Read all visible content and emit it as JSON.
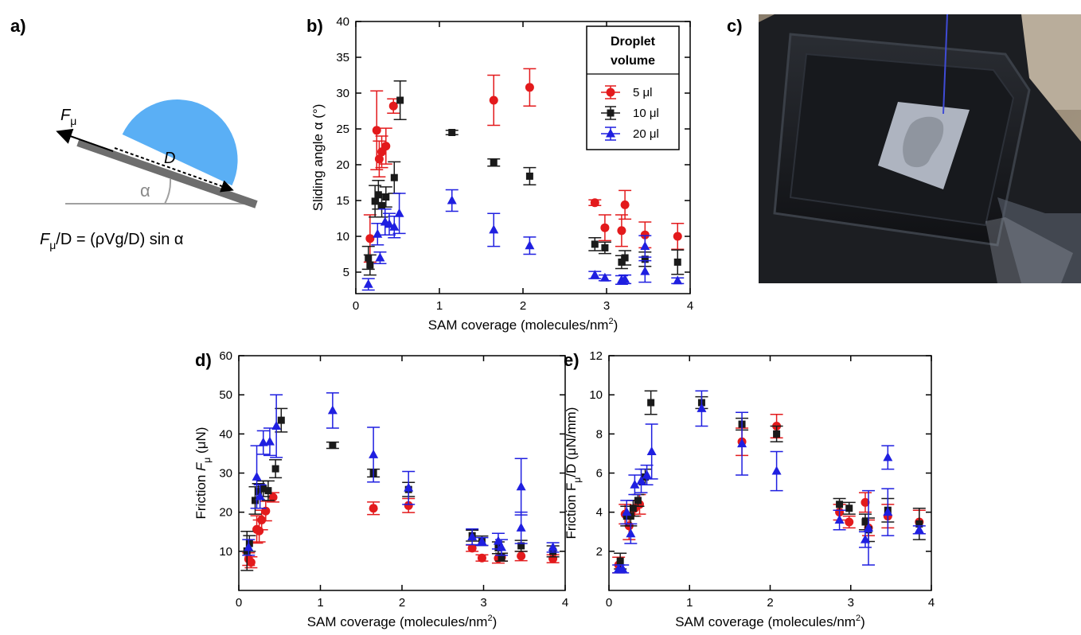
{
  "panel_labels": {
    "a": "a)",
    "b": "b)",
    "c": "c)",
    "d": "d)",
    "e": "e)"
  },
  "schematic": {
    "force_label": "F",
    "force_sub": "μ",
    "length_label": "D",
    "angle_label": "α",
    "equation_lhs": "F",
    "equation_lhs_sub": "μ",
    "equation_rhs": "/D = (ρVg/D) sin α",
    "colors": {
      "droplet": "#5aaff5",
      "substrate": "#6e6e6e",
      "baseline": "#a0a0a0"
    }
  },
  "photo": {
    "description_icon": "photo-droplet-on-tilted-substrate"
  },
  "legend": {
    "title_line1": "Droplet",
    "title_line2": "volume",
    "entries": [
      "5 μl",
      "10 μl",
      "20 μl"
    ]
  },
  "series_styles": [
    {
      "name": "5 μl",
      "color": "#e31a1c",
      "marker": "circle"
    },
    {
      "name": "10 μl",
      "color": "#1a1a1a",
      "marker": "square"
    },
    {
      "name": "20 μl",
      "color": "#1f1fe0",
      "marker": "triangle"
    }
  ],
  "chart_data": [
    {
      "id": "b",
      "type": "scatter",
      "xlabel": "SAM coverage (molecules/nm",
      "xlabel_sup": "2",
      "xlabel_end": ")",
      "ylabel": "Sliding angle α (°)",
      "xlim": [
        0,
        4
      ],
      "ylim": [
        2,
        40
      ],
      "xticks": [
        0,
        1,
        2,
        3,
        4
      ],
      "yticks": [
        5,
        10,
        15,
        20,
        25,
        30,
        35,
        40
      ],
      "series": [
        {
          "name": "5 μl",
          "points": [
            [
              0.17,
              9.7,
              3.3
            ],
            [
              0.25,
              24.8,
              5.5
            ],
            [
              0.28,
              20.8,
              2.5
            ],
            [
              0.31,
              21.8,
              2.2
            ],
            [
              0.36,
              22.6,
              2.5
            ],
            [
              0.45,
              28.2,
              1.0
            ],
            [
              1.65,
              29.0,
              3.5
            ],
            [
              2.08,
              30.8,
              2.6
            ],
            [
              2.86,
              14.7,
              0.4
            ],
            [
              2.98,
              11.2,
              1.8
            ],
            [
              3.18,
              10.8,
              2.2
            ],
            [
              3.22,
              14.4,
              2.0
            ],
            [
              3.46,
              10.2,
              1.8
            ],
            [
              3.85,
              10.0,
              1.8
            ]
          ]
        },
        {
          "name": "10 μl",
          "points": [
            [
              0.15,
              7.0,
              1.6
            ],
            [
              0.17,
              6.0,
              1.4
            ],
            [
              0.23,
              14.9,
              2.2
            ],
            [
              0.27,
              15.8,
              2.0
            ],
            [
              0.31,
              14.3,
              1.6
            ],
            [
              0.36,
              15.5,
              1.4
            ],
            [
              0.46,
              18.2,
              2.2
            ],
            [
              0.53,
              29.0,
              2.7
            ],
            [
              1.15,
              24.5,
              0.3
            ],
            [
              1.65,
              20.3,
              0.5
            ],
            [
              2.08,
              18.4,
              1.2
            ],
            [
              2.86,
              8.9,
              0.9
            ],
            [
              2.98,
              8.4,
              0.8
            ],
            [
              3.18,
              6.4,
              0.9
            ],
            [
              3.22,
              7.0,
              1.0
            ],
            [
              3.46,
              6.8,
              1.0
            ],
            [
              3.85,
              6.4,
              1.7
            ]
          ]
        },
        {
          "name": "20 μl",
          "points": [
            [
              0.15,
              3.3,
              0.8
            ],
            [
              0.26,
              10.3,
              1.5
            ],
            [
              0.29,
              7.0,
              0.8
            ],
            [
              0.35,
              12.0,
              1.8
            ],
            [
              0.4,
              11.7,
              1.5
            ],
            [
              0.46,
              11.3,
              1.5
            ],
            [
              0.52,
              13.2,
              2.8
            ],
            [
              1.15,
              15.0,
              1.5
            ],
            [
              1.65,
              10.9,
              2.3
            ],
            [
              2.08,
              8.7,
              1.2
            ],
            [
              2.86,
              4.6,
              0.5
            ],
            [
              2.98,
              4.2,
              0.4
            ],
            [
              3.18,
              3.9,
              0.6
            ],
            [
              3.22,
              4.0,
              0.6
            ],
            [
              3.46,
              5.1,
              1.5
            ],
            [
              3.46,
              8.6,
              1.5
            ],
            [
              3.85,
              3.8,
              0.4
            ]
          ]
        }
      ]
    },
    {
      "id": "d",
      "type": "scatter",
      "xlabel": "SAM coverage (molecules/nm",
      "xlabel_sup": "2",
      "xlabel_end": ")",
      "ylabel": "Friction F",
      "ylabel_sub": "μ",
      "ylabel_end": " (μN)",
      "xlim": [
        0,
        4
      ],
      "ylim": [
        0,
        60
      ],
      "xticks": [
        0,
        1,
        2,
        3,
        4
      ],
      "yticks": [
        10,
        20,
        30,
        40,
        50,
        60
      ],
      "series": [
        {
          "name": "5 μl",
          "points": [
            [
              0.12,
              8.0,
              1.6
            ],
            [
              0.15,
              7.2,
              1.4
            ],
            [
              0.22,
              15.6,
              3.5
            ],
            [
              0.25,
              15.2,
              2.8
            ],
            [
              0.28,
              18.0,
              2.5
            ],
            [
              0.33,
              20.3,
              2.5
            ],
            [
              0.42,
              23.8,
              1.2
            ],
            [
              1.65,
              21.0,
              1.6
            ],
            [
              2.08,
              21.7,
              1.8
            ],
            [
              2.86,
              10.8,
              0.8
            ],
            [
              2.98,
              8.3,
              0.8
            ],
            [
              3.18,
              8.2,
              1.2
            ],
            [
              3.22,
              8.5,
              1.0
            ],
            [
              3.46,
              8.8,
              1.2
            ],
            [
              3.85,
              8.1,
              1.0
            ]
          ]
        },
        {
          "name": "10 μl",
          "points": [
            [
              0.1,
              10.1,
              5.0
            ],
            [
              0.13,
              12.0,
              2.0
            ],
            [
              0.2,
              23.0,
              3.5
            ],
            [
              0.24,
              25.3,
              2.0
            ],
            [
              0.3,
              26.0,
              2.0
            ],
            [
              0.36,
              25.5,
              2.5
            ],
            [
              0.45,
              31.1,
              2.3
            ],
            [
              0.52,
              43.5,
              3.0
            ],
            [
              1.15,
              37.1,
              0.8
            ],
            [
              1.65,
              30.0,
              1.0
            ],
            [
              2.08,
              25.8,
              1.8
            ],
            [
              2.86,
              14.0,
              1.4
            ],
            [
              2.98,
              12.7,
              1.2
            ],
            [
              3.18,
              10.9,
              1.5
            ],
            [
              3.22,
              8.5,
              1.0
            ],
            [
              3.46,
              11.4,
              1.4
            ],
            [
              3.85,
              10.0,
              1.4
            ]
          ]
        },
        {
          "name": "20 μl",
          "points": [
            [
              0.12,
              11.0,
              2.0
            ],
            [
              0.22,
              29.0,
              8.0
            ],
            [
              0.26,
              24.0,
              3.0
            ],
            [
              0.3,
              37.8,
              3.0
            ],
            [
              0.38,
              38.0,
              3.5
            ],
            [
              0.46,
              42.0,
              8.0
            ],
            [
              1.15,
              46.0,
              4.5
            ],
            [
              1.65,
              34.7,
              7.0
            ],
            [
              2.08,
              26.2,
              4.2
            ],
            [
              2.86,
              13.7,
              2.0
            ],
            [
              2.98,
              12.5,
              1.0
            ],
            [
              3.18,
              12.6,
              2.0
            ],
            [
              3.22,
              11.0,
              2.0
            ],
            [
              3.46,
              26.5,
              7.2
            ],
            [
              3.46,
              16.0,
              4.0
            ],
            [
              3.85,
              11.0,
              1.2
            ]
          ]
        }
      ]
    },
    {
      "id": "e",
      "type": "scatter",
      "xlabel": "SAM coverage (molecules/nm",
      "xlabel_sup": "2",
      "xlabel_end": ")",
      "ylabel": "Friction F",
      "ylabel_sub": "μ",
      "ylabel_end": "/D (μN/mm)",
      "xlim": [
        0,
        4
      ],
      "ylim": [
        0,
        12
      ],
      "xticks": [
        0,
        1,
        2,
        3,
        4
      ],
      "yticks": [
        2,
        4,
        6,
        8,
        10,
        12
      ],
      "series": [
        {
          "name": "5 μl",
          "points": [
            [
              0.12,
              1.3,
              0.4
            ],
            [
              0.2,
              3.9,
              0.5
            ],
            [
              0.25,
              3.3,
              0.7
            ],
            [
              0.32,
              4.2,
              0.4
            ],
            [
              0.38,
              4.4,
              0.5
            ],
            [
              1.65,
              7.6,
              0.7
            ],
            [
              2.08,
              8.4,
              0.6
            ],
            [
              2.86,
              4.0,
              0.4
            ],
            [
              2.98,
              3.5,
              0.3
            ],
            [
              3.18,
              4.5,
              0.5
            ],
            [
              3.22,
              3.2,
              0.4
            ],
            [
              3.46,
              3.8,
              0.6
            ],
            [
              3.85,
              3.5,
              0.6
            ]
          ]
        },
        {
          "name": "10 μl",
          "points": [
            [
              0.14,
              1.5,
              0.4
            ],
            [
              0.22,
              3.8,
              0.5
            ],
            [
              0.27,
              3.8,
              0.5
            ],
            [
              0.3,
              4.2,
              0.4
            ],
            [
              0.36,
              4.6,
              0.3
            ],
            [
              0.45,
              5.8,
              0.4
            ],
            [
              0.52,
              9.6,
              0.6
            ],
            [
              1.15,
              9.6,
              0.3
            ],
            [
              1.65,
              8.5,
              0.3
            ],
            [
              2.08,
              8.0,
              0.4
            ],
            [
              2.86,
              4.4,
              0.3
            ],
            [
              2.98,
              4.2,
              0.3
            ],
            [
              3.18,
              3.5,
              0.4
            ],
            [
              3.22,
              3.1,
              0.6
            ],
            [
              3.46,
              4.1,
              0.6
            ],
            [
              3.85,
              3.4,
              0.8
            ]
          ]
        },
        {
          "name": "20 μl",
          "points": [
            [
              0.12,
              1.1,
              0.2
            ],
            [
              0.17,
              1.1,
              0.2
            ],
            [
              0.22,
              4.0,
              0.6
            ],
            [
              0.27,
              2.9,
              0.5
            ],
            [
              0.32,
              5.4,
              0.5
            ],
            [
              0.4,
              5.6,
              0.6
            ],
            [
              0.47,
              5.9,
              0.5
            ],
            [
              0.53,
              7.1,
              1.4
            ],
            [
              1.15,
              9.3,
              0.9
            ],
            [
              1.65,
              7.5,
              1.6
            ],
            [
              2.08,
              6.1,
              1.0
            ],
            [
              2.86,
              3.6,
              0.5
            ],
            [
              3.18,
              2.6,
              0.4
            ],
            [
              3.22,
              3.2,
              1.9
            ],
            [
              3.46,
              6.8,
              0.6
            ],
            [
              3.46,
              4.0,
              1.2
            ],
            [
              3.85,
              3.1,
              0.2
            ]
          ]
        }
      ]
    }
  ]
}
